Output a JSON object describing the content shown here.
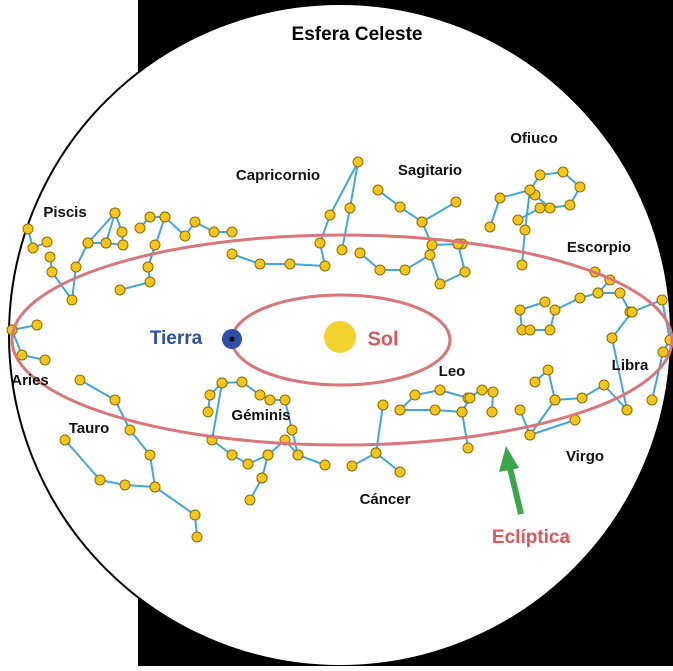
{
  "title": "Esfera Celeste",
  "constellations": [
    "Piscis",
    "Capricornio",
    "Sagitario",
    "Ofiuco",
    "Escorpio",
    "Aries",
    "Libra",
    "Leo",
    "Géminis",
    "Tauro",
    "Virgo",
    "Cáncer"
  ],
  "bodies": {
    "earth": "Tierra",
    "sun": "Sol"
  },
  "ecliptic_label": "Eclíptica"
}
